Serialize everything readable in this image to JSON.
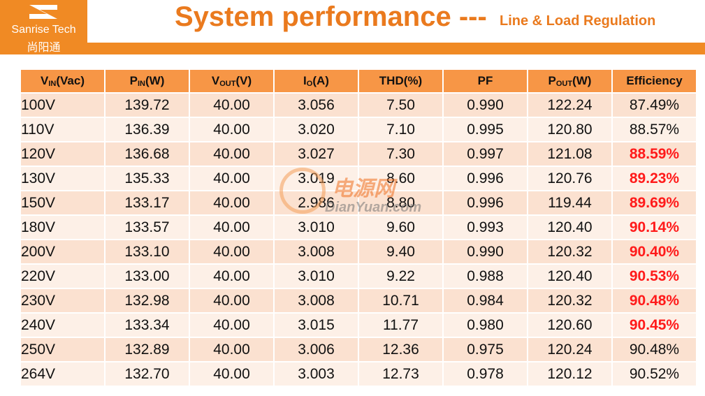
{
  "header": {
    "logo_text": "Sanrise Tech",
    "logo_subtext": "尚阳通",
    "title": "System performance ---",
    "subtitle": "Line & Load Regulation"
  },
  "table": {
    "columns": [
      {
        "base": "V",
        "sub": "IN",
        "unit": "(Vac)"
      },
      {
        "base": "P",
        "sub": "IN",
        "unit": "(W)"
      },
      {
        "base": "V",
        "sub": "OUT",
        "unit": "(V)"
      },
      {
        "base": "I",
        "sub": "O",
        "unit": "(A)"
      },
      {
        "base": "THD(%)"
      },
      {
        "base": "PF"
      },
      {
        "base": "P",
        "sub": "OUT",
        "unit": "(W)"
      },
      {
        "base": "Efficiency"
      }
    ],
    "rows": [
      [
        "100V",
        "139.72",
        "40.00",
        "3.056",
        "7.50",
        "0.990",
        "122.24",
        "87.49%"
      ],
      [
        "110V",
        "136.39",
        "40.00",
        "3.020",
        "7.10",
        "0.995",
        "120.80",
        "88.57%"
      ],
      [
        "120V",
        "136.68",
        "40.00",
        "3.027",
        "7.30",
        "0.997",
        "121.08",
        "88.59%"
      ],
      [
        "130V",
        "135.33",
        "40.00",
        "3.019",
        "8.60",
        "0.996",
        "120.76",
        "89.23%"
      ],
      [
        "150V",
        "133.17",
        "40.00",
        "2.986",
        "8.80",
        "0.996",
        "119.44",
        "89.69%"
      ],
      [
        "180V",
        "133.57",
        "40.00",
        "3.010",
        "9.60",
        "0.993",
        "120.40",
        "90.14%"
      ],
      [
        "200V",
        "133.10",
        "40.00",
        "3.008",
        "9.40",
        "0.990",
        "120.32",
        "90.40%"
      ],
      [
        "220V",
        "133.00",
        "40.00",
        "3.010",
        "9.22",
        "0.988",
        "120.40",
        "90.53%"
      ],
      [
        "230V",
        "132.98",
        "40.00",
        "3.008",
        "10.71",
        "0.984",
        "120.32",
        "90.48%"
      ],
      [
        "240V",
        "133.34",
        "40.00",
        "3.015",
        "11.77",
        "0.980",
        "120.60",
        "90.45%"
      ],
      [
        "250V",
        "132.89",
        "40.00",
        "3.006",
        "12.36",
        "0.975",
        "120.24",
        "90.48%"
      ],
      [
        "264V",
        "132.70",
        "40.00",
        "3.003",
        "12.73",
        "0.978",
        "120.12",
        "90.52%"
      ]
    ],
    "highlight_rows": [
      2,
      3,
      4,
      5,
      6,
      7,
      8,
      9
    ],
    "highlight_color": "#ff1a1a"
  },
  "watermark": {
    "text": "电源网",
    "url": "DianYuan.com"
  }
}
